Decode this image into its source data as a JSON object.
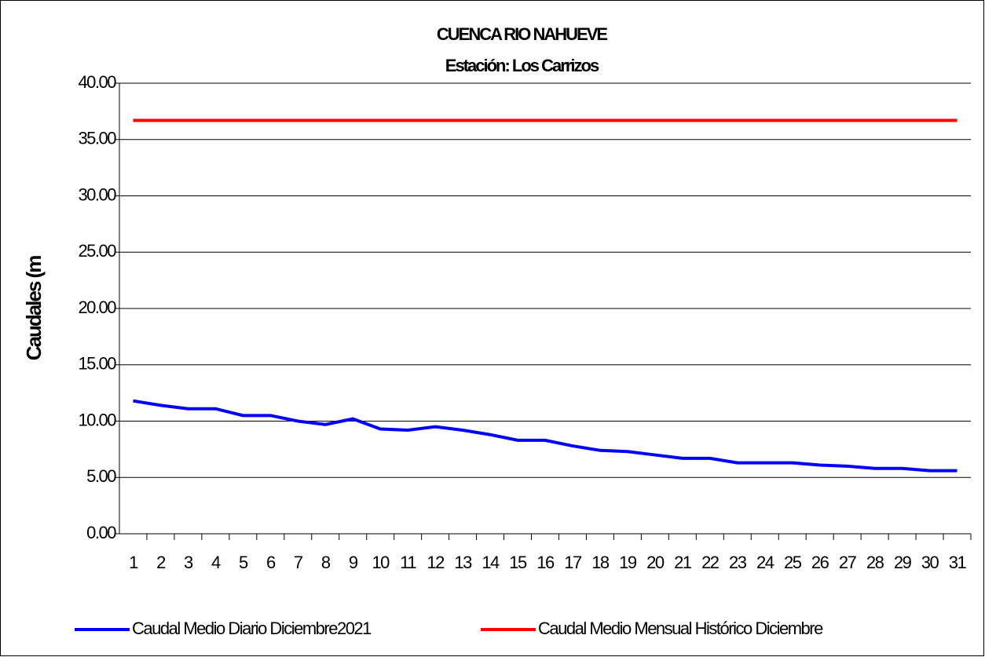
{
  "chart_data": {
    "type": "line",
    "title": "CUENCA RIO NAHUEVE",
    "subtitle": "Estación: Los Carrizos",
    "y_label": "Caudales (m",
    "categories": [
      "1",
      "2",
      "3",
      "4",
      "5",
      "6",
      "7",
      "8",
      "9",
      "10",
      "11",
      "12",
      "13",
      "14",
      "15",
      "16",
      "17",
      "18",
      "19",
      "20",
      "21",
      "22",
      "23",
      "24",
      "25",
      "26",
      "27",
      "28",
      "29",
      "30",
      "31"
    ],
    "series": [
      {
        "name": "Caudal Medio Diario Diciembre2021",
        "color": "#0000ff",
        "values": [
          11.8,
          11.4,
          11.1,
          11.1,
          10.5,
          10.5,
          10.0,
          9.7,
          10.2,
          9.3,
          9.2,
          9.5,
          9.2,
          8.8,
          8.3,
          8.3,
          7.8,
          7.4,
          7.3,
          7.0,
          6.7,
          6.7,
          6.3,
          6.3,
          6.3,
          6.1,
          6.0,
          5.8,
          5.8,
          5.6,
          5.6
        ]
      },
      {
        "name": "Caudal Medio Mensual Histórico Diciembre",
        "color": "#ff0000",
        "values": [
          36.7,
          36.7,
          36.7,
          36.7,
          36.7,
          36.7,
          36.7,
          36.7,
          36.7,
          36.7,
          36.7,
          36.7,
          36.7,
          36.7,
          36.7,
          36.7,
          36.7,
          36.7,
          36.7,
          36.7,
          36.7,
          36.7,
          36.7,
          36.7,
          36.7,
          36.7,
          36.7,
          36.7,
          36.7,
          36.7,
          36.7
        ]
      }
    ],
    "ylim": [
      0,
      40
    ],
    "yticks": [
      {
        "value": 0,
        "label": "0.00"
      },
      {
        "value": 5,
        "label": "5.00"
      },
      {
        "value": 10,
        "label": "10.00"
      },
      {
        "value": 15,
        "label": "15.00"
      },
      {
        "value": 20,
        "label": "20.00"
      },
      {
        "value": 25,
        "label": "25.00"
      },
      {
        "value": 30,
        "label": "30.00"
      },
      {
        "value": 35,
        "label": "35.00"
      },
      {
        "value": 40,
        "label": "40.00"
      }
    ],
    "grid": true,
    "legend": "bottom"
  }
}
